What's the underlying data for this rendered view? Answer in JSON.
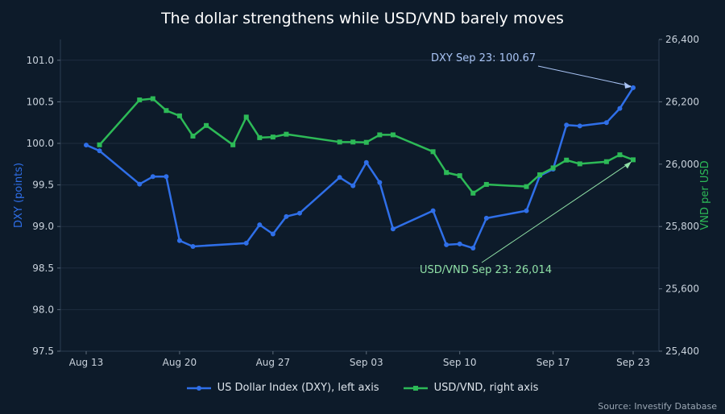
{
  "chart_data": {
    "type": "line",
    "title": "The dollar strengthens while USD/VND barely moves",
    "ylabel": "DXY (points)",
    "y2label": "VND per USD",
    "ylim": [
      97.5,
      101.25
    ],
    "y2lim": [
      25400,
      26400
    ],
    "yticks": [
      "97.5",
      "98.0",
      "98.5",
      "99.0",
      "99.5",
      "100.0",
      "100.5",
      "101.0"
    ],
    "y2ticks": [
      "25,400",
      "25,600",
      "25,800",
      "26,000",
      "26,200",
      "26,400"
    ],
    "xticks": [
      {
        "date": "2024-08-13",
        "label": "Aug 13"
      },
      {
        "date": "2024-08-20",
        "label": "Aug 20"
      },
      {
        "date": "2024-08-27",
        "label": "Aug 27"
      },
      {
        "date": "2024-09-03",
        "label": "Sep 03"
      },
      {
        "date": "2024-09-10",
        "label": "Sep 10"
      },
      {
        "date": "2024-09-17",
        "label": "Sep 17"
      },
      {
        "date": "2024-09-23",
        "label": "Sep 23"
      }
    ],
    "grid": true,
    "legend_position": "bottom-center",
    "colors": {
      "dxy": "#2f6fe8",
      "vnd": "#2dba57",
      "background": "#0d1b2a",
      "grid": "#1e2d3f"
    },
    "series": [
      {
        "name": "US Dollar Index (DXY), left axis",
        "axis": "left",
        "points": [
          {
            "x": "2024-08-13",
            "y": 99.98
          },
          {
            "x": "2024-08-14",
            "y": 99.91
          },
          {
            "x": "2024-08-17",
            "y": 99.51
          },
          {
            "x": "2024-08-18",
            "y": 99.6
          },
          {
            "x": "2024-08-19",
            "y": 99.6
          },
          {
            "x": "2024-08-20",
            "y": 98.83
          },
          {
            "x": "2024-08-21",
            "y": 98.76
          },
          {
            "x": "2024-08-25",
            "y": 98.8
          },
          {
            "x": "2024-08-26",
            "y": 99.02
          },
          {
            "x": "2024-08-27",
            "y": 98.91
          },
          {
            "x": "2024-08-28",
            "y": 99.12
          },
          {
            "x": "2024-08-29",
            "y": 99.16
          },
          {
            "x": "2024-09-01",
            "y": 99.59
          },
          {
            "x": "2024-09-02",
            "y": 99.49
          },
          {
            "x": "2024-09-03",
            "y": 99.77
          },
          {
            "x": "2024-09-04",
            "y": 99.53
          },
          {
            "x": "2024-09-05",
            "y": 98.97
          },
          {
            "x": "2024-09-08",
            "y": 99.19
          },
          {
            "x": "2024-09-09",
            "y": 98.78
          },
          {
            "x": "2024-09-10",
            "y": 98.79
          },
          {
            "x": "2024-09-11",
            "y": 98.74
          },
          {
            "x": "2024-09-12",
            "y": 99.1
          },
          {
            "x": "2024-09-15",
            "y": 99.19
          },
          {
            "x": "2024-09-16",
            "y": 99.61
          },
          {
            "x": "2024-09-17",
            "y": 99.69
          },
          {
            "x": "2024-09-18",
            "y": 100.22
          },
          {
            "x": "2024-09-19",
            "y": 100.21
          },
          {
            "x": "2024-09-21",
            "y": 100.25
          },
          {
            "x": "2024-09-22",
            "y": 100.42
          },
          {
            "x": "2024-09-23",
            "y": 100.67
          }
        ]
      },
      {
        "name": "USD/VND, right axis",
        "axis": "right",
        "points": [
          {
            "x": "2024-08-14",
            "y": 26062
          },
          {
            "x": "2024-08-17",
            "y": 26206
          },
          {
            "x": "2024-08-18",
            "y": 26210
          },
          {
            "x": "2024-08-19",
            "y": 26172
          },
          {
            "x": "2024-08-20",
            "y": 26155
          },
          {
            "x": "2024-08-21",
            "y": 26090
          },
          {
            "x": "2024-08-22",
            "y": 26124
          },
          {
            "x": "2024-08-24",
            "y": 26062
          },
          {
            "x": "2024-08-25",
            "y": 26151
          },
          {
            "x": "2024-08-26",
            "y": 26085
          },
          {
            "x": "2024-08-27",
            "y": 26087
          },
          {
            "x": "2024-08-28",
            "y": 26096
          },
          {
            "x": "2024-09-01",
            "y": 26071
          },
          {
            "x": "2024-09-02",
            "y": 26071
          },
          {
            "x": "2024-09-03",
            "y": 26070
          },
          {
            "x": "2024-09-04",
            "y": 26094
          },
          {
            "x": "2024-09-05",
            "y": 26094
          },
          {
            "x": "2024-09-08",
            "y": 26040
          },
          {
            "x": "2024-09-09",
            "y": 25973
          },
          {
            "x": "2024-09-10",
            "y": 25963
          },
          {
            "x": "2024-09-11",
            "y": 25907
          },
          {
            "x": "2024-09-12",
            "y": 25935
          },
          {
            "x": "2024-09-15",
            "y": 25928
          },
          {
            "x": "2024-09-16",
            "y": 25966
          },
          {
            "x": "2024-09-17",
            "y": 25988
          },
          {
            "x": "2024-09-18",
            "y": 26013
          },
          {
            "x": "2024-09-19",
            "y": 26001
          },
          {
            "x": "2024-09-21",
            "y": 26008
          },
          {
            "x": "2024-09-22",
            "y": 26030
          },
          {
            "x": "2024-09-23",
            "y": 26014
          }
        ]
      }
    ],
    "annotations": [
      {
        "text": "DXY Sep 23: 100.67",
        "series": 0,
        "x": "2024-09-23",
        "y": 100.67
      },
      {
        "text": "USD/VND Sep 23: 26,014",
        "series": 1,
        "x": "2024-09-23",
        "y": 26014
      }
    ],
    "source": "Source: Investify Database"
  }
}
